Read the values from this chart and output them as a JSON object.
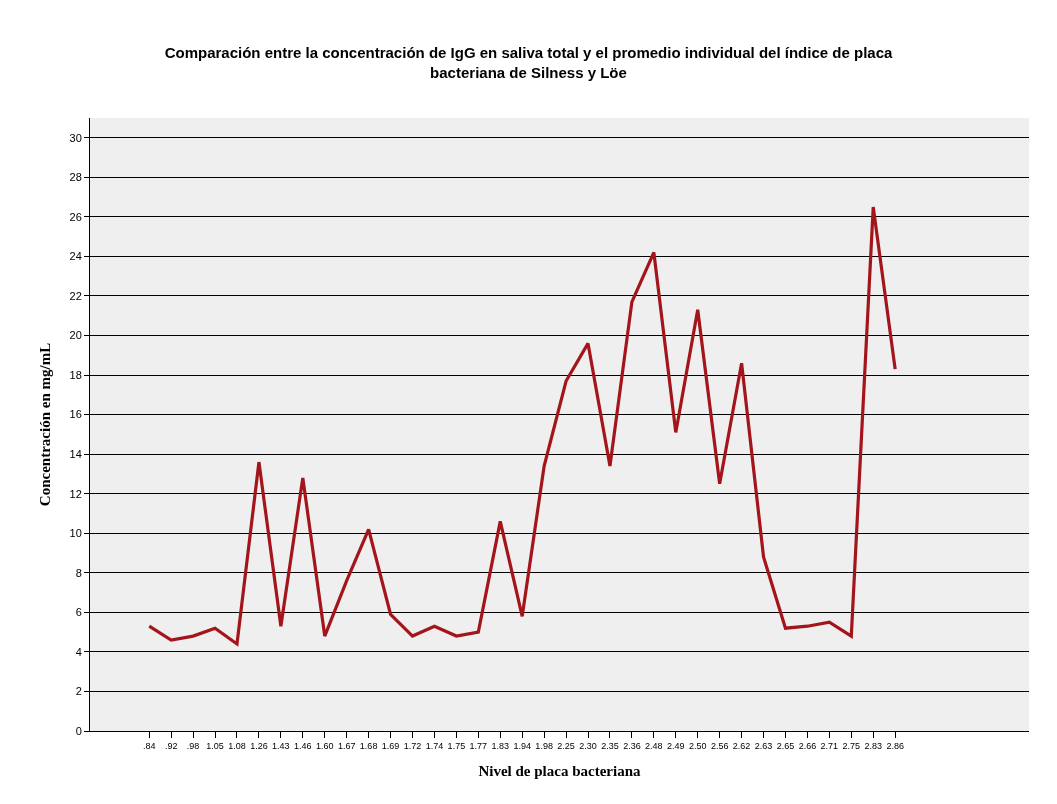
{
  "chart_data": {
    "type": "line",
    "title": "Comparación entre la concentración de IgG en saliva total y el promedio individual del índice de placa bacteriana de Silness y Löe",
    "xlabel": "Nivel de placa bacteriana",
    "ylabel": "Concentración en mg/mL",
    "categories": [
      ".84",
      ".92",
      ".98",
      "1.05",
      "1.08",
      "1.26",
      "1.43",
      "1.46",
      "1.60",
      "1.67",
      "1.68",
      "1.69",
      "1.72",
      "1.74",
      "1.75",
      "1.77",
      "1.83",
      "1.94",
      "1.98",
      "2.25",
      "2.30",
      "2.35",
      "2.36",
      "2.48",
      "2.49",
      "2.50",
      "2.56",
      "2.62",
      "2.63",
      "2.65",
      "2.66",
      "2.71",
      "2.75",
      "2.83",
      "2.86"
    ],
    "series": [
      {
        "color": "#a3151a",
        "values": [
          5.3,
          4.6,
          4.8,
          5.2,
          4.4,
          13.6,
          5.3,
          12.8,
          4.8,
          7.6,
          10.2,
          5.9,
          4.8,
          5.3,
          4.8,
          5.0,
          10.6,
          5.8,
          13.4,
          17.7,
          19.6,
          13.4,
          21.7,
          24.2,
          15.1,
          21.3,
          12.5,
          18.6,
          8.8,
          5.2,
          5.3,
          5.5,
          4.8,
          26.5,
          18.3
        ]
      }
    ],
    "ylim": [
      0,
      31
    ],
    "yticks": [
      0,
      2,
      4,
      6,
      8,
      10,
      12,
      14,
      16,
      18,
      20,
      22,
      24,
      26,
      28,
      30
    ],
    "grid": "y",
    "marker": "none",
    "line_style": "solid"
  }
}
